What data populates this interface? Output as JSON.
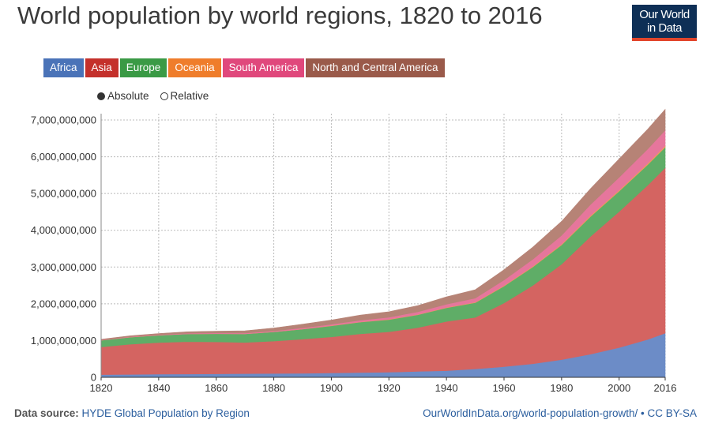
{
  "title": "World population by world regions, 1820 to 2016",
  "logo": {
    "line1": "Our World",
    "line2": "in Data"
  },
  "legend": [
    {
      "label": "Africa",
      "color": "#4a73b8"
    },
    {
      "label": "Asia",
      "color": "#c4302b"
    },
    {
      "label": "Europe",
      "color": "#3a9a45"
    },
    {
      "label": "Oceania",
      "color": "#ef7d2b"
    },
    {
      "label": "South America",
      "color": "#e0487c"
    },
    {
      "label": "North and Central America",
      "color": "#9a5a4a"
    }
  ],
  "toggle": {
    "absolute": "Absolute",
    "relative": "Relative",
    "selected": "absolute"
  },
  "footer": {
    "source_label": "Data source:",
    "source_text": "HYDE Global Population by Region",
    "url": "OurWorldInData.org/world-population-growth/ • CC BY-SA"
  },
  "chart_data": {
    "type": "area",
    "stacked": true,
    "title": "World population by world regions, 1820 to 2016",
    "x": [
      1820,
      1830,
      1840,
      1850,
      1860,
      1870,
      1880,
      1890,
      1900,
      1910,
      1920,
      1930,
      1940,
      1950,
      1960,
      1970,
      1980,
      1990,
      2000,
      2010,
      2016
    ],
    "xticks": [
      1820,
      1840,
      1860,
      1880,
      1900,
      1920,
      1940,
      1960,
      1980,
      2000,
      2016
    ],
    "yticks": [
      0,
      1000000000,
      2000000000,
      3000000000,
      4000000000,
      5000000000,
      6000000000,
      7000000000
    ],
    "ytick_labels": [
      "0",
      "1,000,000,000",
      "2,000,000,000",
      "3,000,000,000",
      "4,000,000,000",
      "5,000,000,000",
      "6,000,000,000",
      "7,000,000,000"
    ],
    "xlim": [
      1820,
      2016
    ],
    "ylim": [
      0,
      7000000000
    ],
    "grid": true,
    "series": [
      {
        "name": "Africa",
        "color": "#6c8cc7",
        "values": [
          74000000,
          80000000,
          85000000,
          90000000,
          95000000,
          100000000,
          105000000,
          110000000,
          120000000,
          130000000,
          140000000,
          160000000,
          180000000,
          230000000,
          290000000,
          370000000,
          480000000,
          630000000,
          810000000,
          1030000000,
          1200000000
        ]
      },
      {
        "name": "Asia",
        "color": "#d46461",
        "values": [
          750000000,
          820000000,
          860000000,
          880000000,
          870000000,
          850000000,
          880000000,
          930000000,
          980000000,
          1050000000,
          1100000000,
          1190000000,
          1340000000,
          1400000000,
          1730000000,
          2130000000,
          2600000000,
          3200000000,
          3700000000,
          4200000000,
          4500000000
        ]
      },
      {
        "name": "Europe",
        "color": "#5fad67",
        "values": [
          180000000,
          190000000,
          200000000,
          210000000,
          220000000,
          230000000,
          250000000,
          270000000,
          300000000,
          320000000,
          330000000,
          350000000,
          370000000,
          400000000,
          460000000,
          500000000,
          520000000,
          540000000,
          550000000,
          560000000,
          560000000
        ]
      },
      {
        "name": "Oceania",
        "color": "#f09a5a",
        "values": [
          2000000,
          2000000,
          2000000,
          2000000,
          3000000,
          4000000,
          4000000,
          5000000,
          6000000,
          7000000,
          8000000,
          10000000,
          11000000,
          13000000,
          16000000,
          20000000,
          23000000,
          27000000,
          31000000,
          36000000,
          40000000
        ]
      },
      {
        "name": "South America",
        "color": "#e6769c",
        "values": [
          10000000,
          12000000,
          14000000,
          16000000,
          18000000,
          20000000,
          24000000,
          30000000,
          38000000,
          46000000,
          56000000,
          70000000,
          86000000,
          110000000,
          150000000,
          190000000,
          240000000,
          300000000,
          350000000,
          390000000,
          420000000
        ]
      },
      {
        "name": "North and Central America",
        "color": "#b68376",
        "values": [
          20000000,
          25000000,
          30000000,
          40000000,
          50000000,
          60000000,
          80000000,
          100000000,
          115000000,
          140000000,
          150000000,
          170000000,
          200000000,
          230000000,
          280000000,
          330000000,
          380000000,
          430000000,
          500000000,
          540000000,
          570000000
        ]
      }
    ]
  }
}
